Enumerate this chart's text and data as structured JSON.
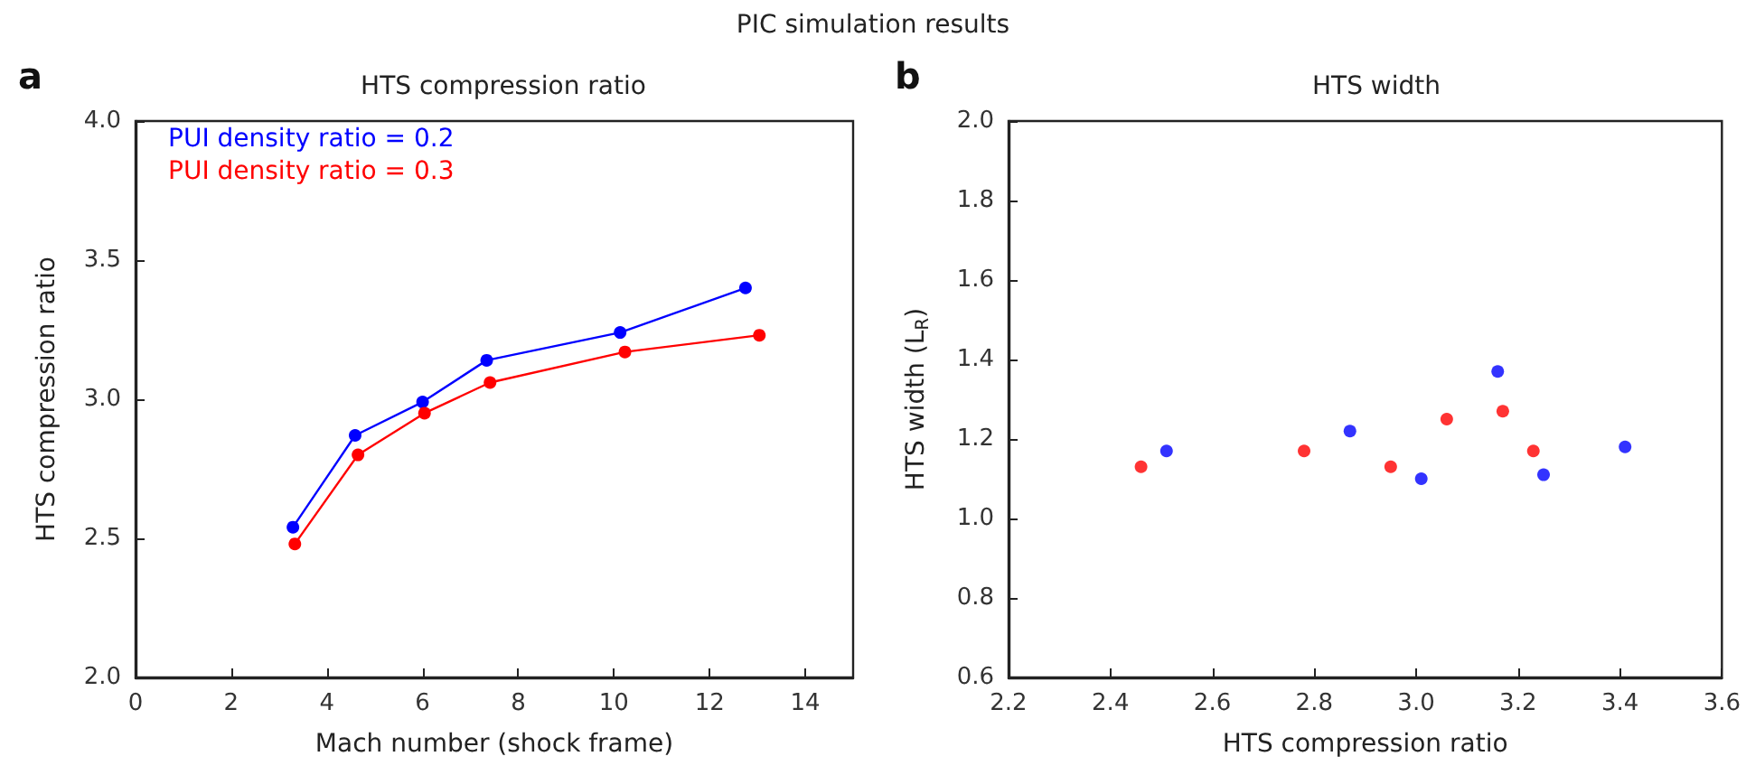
{
  "chart_data": [
    {
      "type": "line",
      "title": "HTS compression ratio",
      "xlabel": "Mach number (shock frame)",
      "ylabel": "HTS compression ratio",
      "annotations": [
        "PIC simulation results",
        "a"
      ],
      "xlim": [
        0,
        15
      ],
      "xticks": [
        0,
        2,
        4,
        6,
        8,
        10,
        12,
        14
      ],
      "ylim": [
        2,
        4
      ],
      "yticks": [
        {
          "value": 2,
          "label": "2.0"
        },
        2.5,
        {
          "value": 3,
          "label": "3.0"
        },
        3.5,
        {
          "value": 4,
          "label": "4.0"
        }
      ],
      "marker": "circle",
      "legend": "top left",
      "series": [
        {
          "name": "PUI density ratio = 0.2",
          "color": "#0000ff",
          "x": [
            3.29,
            4.59,
            6.0,
            7.34,
            10.13,
            12.75
          ],
          "values": [
            2.54,
            2.87,
            2.99,
            3.14,
            3.24,
            3.4
          ]
        },
        {
          "name": "PUI density ratio = 0.3",
          "color": "#ff0000",
          "x": [
            3.33,
            4.65,
            6.04,
            7.41,
            10.23,
            13.04
          ],
          "values": [
            2.48,
            2.8,
            2.95,
            3.06,
            3.17,
            3.23
          ]
        }
      ]
    },
    {
      "type": "scatter",
      "title": "HTS width",
      "xlabel": "HTS compression ratio",
      "ylabel": "HTS width (L$_{R}$)",
      "annotations": [
        "b"
      ],
      "xlim": [
        2.2,
        3.6
      ],
      "xticks": [
        2.2,
        2.4,
        2.6,
        2.8,
        {
          "value": 3,
          "label": "3.0"
        },
        3.2,
        3.4,
        3.6
      ],
      "ylim": [
        0.6,
        2
      ],
      "yticks": [
        0.6,
        0.8,
        {
          "value": 1,
          "label": "1.0"
        },
        1.2,
        1.4,
        1.6,
        1.8,
        {
          "value": 2,
          "label": "2.0"
        }
      ],
      "marker": "circle",
      "series": [
        {
          "color": "#0000ff",
          "x": [
            2.51,
            2.87,
            3.01,
            3.16,
            3.25,
            3.41
          ],
          "values": [
            1.17,
            1.22,
            1.1,
            1.37,
            1.11,
            1.18
          ]
        },
        {
          "color": "#ff0000",
          "x": [
            2.46,
            2.78,
            2.95,
            3.06,
            3.17,
            3.23
          ],
          "values": [
            1.13,
            1.17,
            1.13,
            1.25,
            1.27,
            1.17
          ]
        }
      ]
    }
  ]
}
